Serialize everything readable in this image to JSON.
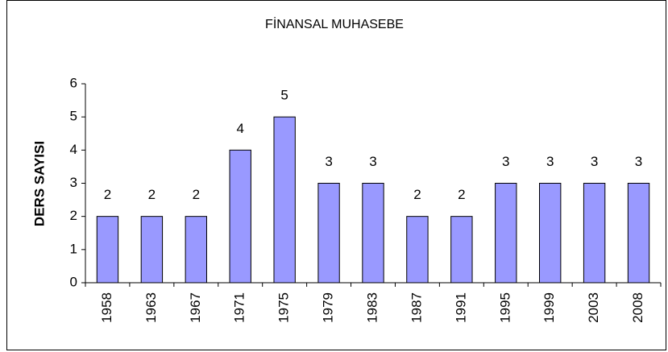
{
  "chart_data": {
    "type": "bar",
    "title": "FİNANSAL MUHASEBE",
    "y_label": "DERS SAYISI",
    "categories": [
      "1958",
      "1963",
      "1967",
      "1971",
      "1975",
      "1979",
      "1983",
      "1987",
      "1991",
      "1995",
      "1999",
      "2003",
      "2008"
    ],
    "values": [
      2,
      2,
      2,
      4,
      5,
      3,
      3,
      2,
      2,
      3,
      3,
      3,
      3
    ],
    "color": "#9999ff",
    "ylim": [
      0,
      6
    ],
    "yticks": [
      0,
      1,
      2,
      3,
      4,
      5,
      6
    ],
    "grid": false
  }
}
